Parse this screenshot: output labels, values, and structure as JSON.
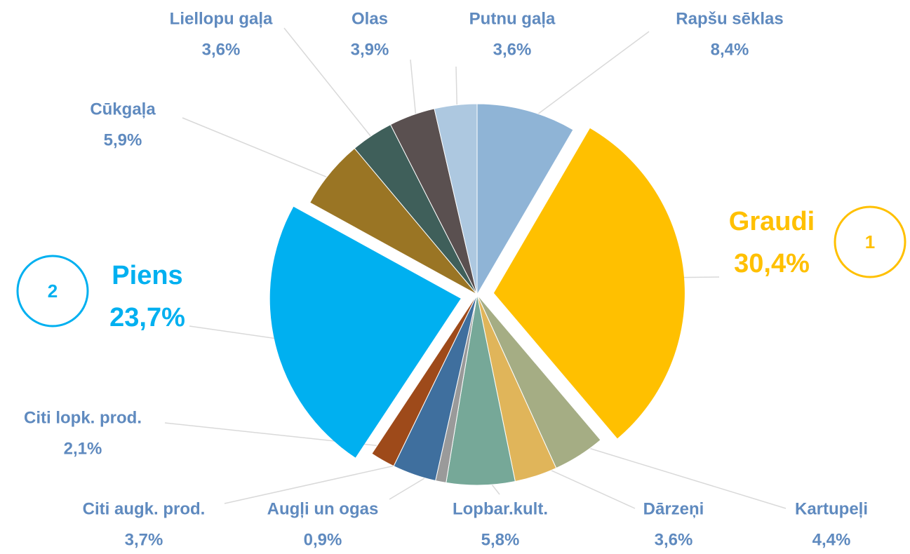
{
  "chart_data": {
    "type": "pie",
    "categories": [
      "Rapšu sēklas",
      "Graudi",
      "Kartupeļi",
      "Dārzeņi",
      "Lopbar.kult.",
      "Augļi un ogas",
      "Citi augk. prod.",
      "Citi lopk. prod.",
      "Piens",
      "Cūkgaļa",
      "Liellopu gaļa",
      "Olas",
      "Putnu gaļa"
    ],
    "values": [
      8.4,
      30.4,
      4.4,
      3.6,
      5.8,
      0.9,
      3.7,
      2.1,
      23.7,
      5.9,
      3.6,
      3.9,
      3.6
    ],
    "value_labels": [
      "8,4%",
      "30,4%",
      "4,4%",
      "3,6%",
      "5,8%",
      "0,9%",
      "3,7%",
      "2,1%",
      "23,7%",
      "5,9%",
      "3,6%",
      "3,9%",
      "3,6%"
    ],
    "colors": [
      "#8fb4d6",
      "#ffc000",
      "#a5ad84",
      "#e0b55a",
      "#76a898",
      "#9a9a9a",
      "#3f6f9e",
      "#9e4a1a",
      "#00b0f0",
      "#9a7524",
      "#3f5f5a",
      "#5a5050",
      "#adc8e0"
    ],
    "highlights": [
      {
        "slice": 1,
        "label": "1"
      },
      {
        "slice": 8,
        "label": "2"
      }
    ]
  }
}
